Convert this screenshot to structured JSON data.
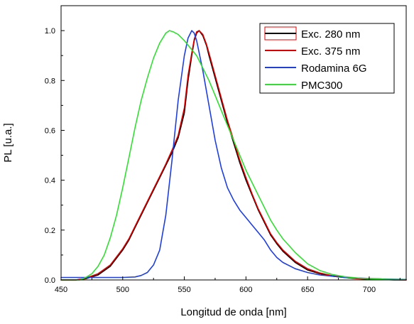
{
  "chart_data": {
    "type": "line",
    "title": "",
    "xlabel": "Longitud de onda [nm]",
    "ylabel": "PL  [u.a.]",
    "xlim": [
      450,
      730
    ],
    "ylim": [
      0,
      1.1
    ],
    "xticks": [
      450,
      500,
      550,
      600,
      650,
      700
    ],
    "yticks": [
      0.0,
      0.2,
      0.4,
      0.6,
      0.8,
      1.0
    ],
    "xtick_labels": [
      "450",
      "500",
      "550",
      "600",
      "650",
      "700"
    ],
    "ytick_labels": [
      "0.0",
      "0.2",
      "0.4",
      "0.6",
      "0.8",
      "1.0"
    ],
    "grid": false,
    "legend_position": "top-right",
    "series": [
      {
        "name": "Exc. 280 nm",
        "color": "#000000",
        "x": [
          450,
          462,
          470,
          480,
          490,
          500,
          505,
          510,
          515,
          520,
          525,
          530,
          535,
          540,
          545,
          550,
          553,
          556,
          558,
          560,
          562,
          565,
          568,
          570,
          575,
          580,
          585,
          590,
          595,
          600,
          605,
          610,
          615,
          620,
          625,
          630,
          640,
          650,
          660,
          670,
          680,
          690,
          700,
          710,
          720,
          730
        ],
        "y": [
          0.0,
          0.0,
          0.005,
          0.02,
          0.055,
          0.12,
          0.16,
          0.21,
          0.26,
          0.31,
          0.36,
          0.41,
          0.46,
          0.51,
          0.57,
          0.67,
          0.8,
          0.9,
          0.96,
          0.99,
          1.0,
          0.98,
          0.94,
          0.9,
          0.81,
          0.72,
          0.63,
          0.55,
          0.47,
          0.4,
          0.34,
          0.28,
          0.23,
          0.18,
          0.145,
          0.115,
          0.07,
          0.04,
          0.025,
          0.015,
          0.01,
          0.005,
          0.003,
          0.002,
          0.0,
          0.0
        ]
      },
      {
        "name": "Exc. 375 nm",
        "color": "#dd0000",
        "x": [
          450,
          462,
          470,
          480,
          490,
          500,
          505,
          510,
          515,
          520,
          525,
          530,
          535,
          540,
          545,
          550,
          553,
          556,
          558,
          560,
          562,
          565,
          568,
          570,
          575,
          580,
          585,
          590,
          595,
          600,
          605,
          610,
          615,
          620,
          625,
          630,
          640,
          650,
          660,
          670,
          680,
          690,
          700,
          710,
          720,
          730
        ],
        "y": [
          0.0,
          0.0,
          0.007,
          0.025,
          0.06,
          0.125,
          0.165,
          0.215,
          0.265,
          0.315,
          0.365,
          0.415,
          0.465,
          0.52,
          0.58,
          0.69,
          0.82,
          0.91,
          0.965,
          0.995,
          1.0,
          0.985,
          0.945,
          0.91,
          0.82,
          0.73,
          0.64,
          0.56,
          0.48,
          0.41,
          0.345,
          0.285,
          0.235,
          0.185,
          0.15,
          0.12,
          0.075,
          0.045,
          0.028,
          0.017,
          0.011,
          0.006,
          0.004,
          0.002,
          0.001,
          0.0
        ]
      },
      {
        "name": "Rodamina 6G",
        "color": "#1f3fd8",
        "x": [
          450,
          480,
          500,
          510,
          515,
          520,
          525,
          530,
          535,
          540,
          545,
          550,
          553,
          556,
          558,
          560,
          565,
          570,
          575,
          580,
          585,
          590,
          595,
          600,
          605,
          610,
          615,
          620,
          625,
          630,
          640,
          650,
          660,
          670,
          680,
          690,
          700,
          710,
          720,
          730
        ],
        "y": [
          0.01,
          0.01,
          0.01,
          0.012,
          0.018,
          0.03,
          0.06,
          0.12,
          0.26,
          0.48,
          0.72,
          0.9,
          0.97,
          1.0,
          0.99,
          0.96,
          0.84,
          0.7,
          0.56,
          0.45,
          0.37,
          0.32,
          0.28,
          0.25,
          0.22,
          0.19,
          0.16,
          0.12,
          0.09,
          0.07,
          0.045,
          0.03,
          0.02,
          0.015,
          0.01,
          0.008,
          0.006,
          0.004,
          0.003,
          0.002
        ]
      },
      {
        "name": "PMC300",
        "color": "#33dd33",
        "x": [
          450,
          465,
          470,
          475,
          480,
          485,
          490,
          495,
          500,
          505,
          510,
          515,
          520,
          525,
          530,
          535,
          538,
          541,
          545,
          550,
          555,
          560,
          565,
          570,
          575,
          580,
          585,
          590,
          595,
          600,
          605,
          610,
          615,
          620,
          625,
          630,
          640,
          650,
          660,
          670,
          680,
          690,
          700,
          710,
          720,
          730
        ],
        "y": [
          0.0,
          0.0,
          0.01,
          0.025,
          0.055,
          0.1,
          0.17,
          0.26,
          0.37,
          0.49,
          0.61,
          0.72,
          0.81,
          0.89,
          0.95,
          0.99,
          1.0,
          0.995,
          0.985,
          0.96,
          0.93,
          0.9,
          0.85,
          0.8,
          0.74,
          0.68,
          0.62,
          0.56,
          0.5,
          0.44,
          0.39,
          0.34,
          0.29,
          0.24,
          0.2,
          0.165,
          0.11,
          0.065,
          0.038,
          0.022,
          0.013,
          0.008,
          0.005,
          0.003,
          0.002,
          0.001
        ]
      }
    ]
  }
}
